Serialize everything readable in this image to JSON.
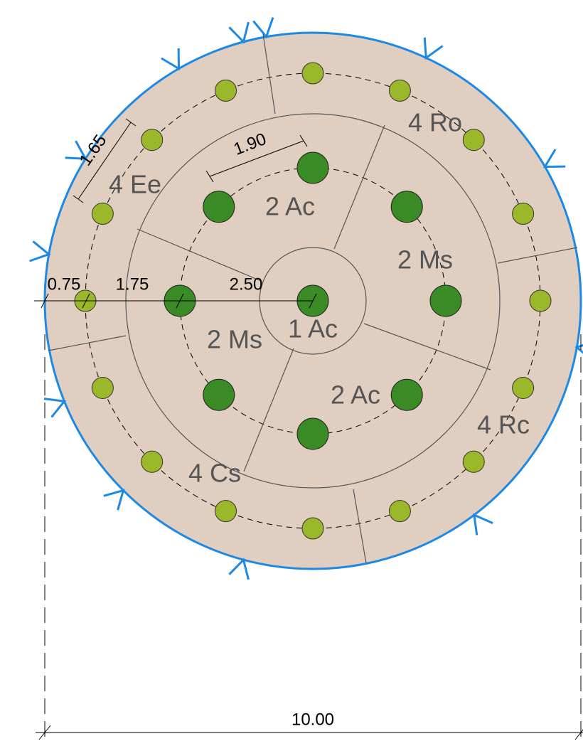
{
  "zones": [
    "4 Ee",
    "2 Ac",
    "4 Ro",
    "2 Ms",
    "1 Ac",
    "2 Ms",
    "2 Ac",
    "4 Rc",
    "4 Cs"
  ],
  "dimensions": [
    "0.75",
    "1.75",
    "2.50",
    "1.65",
    "1.90",
    "10.00"
  ]
}
